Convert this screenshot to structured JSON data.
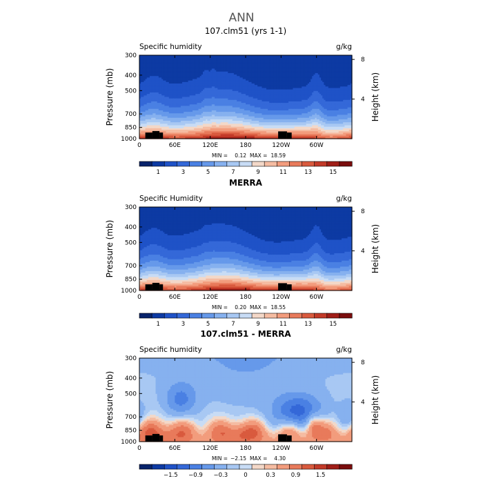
{
  "figure_title": "ANN",
  "chart_data": [
    {
      "type": "heatmap",
      "title": "107.clm51 (yrs 1-1)",
      "variable_label": "Specific humidity",
      "units": "g/kg",
      "ylabel": "Pressure (mb)",
      "ylabel_right": "Height (km)",
      "x_ticks": [
        "0",
        "60E",
        "120E",
        "180",
        "120W",
        "60W"
      ],
      "x_tick_values": [
        0,
        60,
        120,
        180,
        240,
        300
      ],
      "xlim": [
        0,
        360
      ],
      "y_ticks": [
        "300",
        "400",
        "500",
        "700",
        "850",
        "1000"
      ],
      "y_tick_values": [
        300,
        400,
        500,
        700,
        850,
        1000
      ],
      "ylim": [
        1000,
        300
      ],
      "y_scale": "log-pressure",
      "right_ticks": [
        "8",
        "4"
      ],
      "right_tick_values": [
        8,
        4
      ],
      "stats": {
        "min_label": "MIN =",
        "min": "0.12",
        "max_label": "MAX =",
        "max": "18.59"
      },
      "colorbar": {
        "levels": [
          0,
          1,
          2,
          3,
          4,
          5,
          6,
          7,
          8,
          9,
          10,
          11,
          12,
          13,
          14,
          15,
          16
        ],
        "labels": [
          "1",
          "3",
          "5",
          "7",
          "9",
          "11",
          "13",
          "15"
        ],
        "label_values": [
          1,
          3,
          5,
          7,
          9,
          11,
          13,
          15
        ],
        "colors": [
          "#08236b",
          "#0d3aa3",
          "#1f52c7",
          "#3468d8",
          "#4a80e3",
          "#6699ea",
          "#86b1ef",
          "#a8c8f3",
          "#c8dcf5",
          "#f3d8c8",
          "#f5bca2",
          "#f29c7d",
          "#e87a5b",
          "#d95a3e",
          "#c23a28",
          "#a01e18",
          "#7a0d0d"
        ]
      },
      "field": "model"
    },
    {
      "type": "heatmap",
      "title": "MERRA",
      "variable_label": "Specific Humidity",
      "units": "g/kg",
      "ylabel": "Pressure (mb)",
      "ylabel_right": "Height (km)",
      "x_ticks": [
        "0",
        "60E",
        "120E",
        "180",
        "120W",
        "60W"
      ],
      "x_tick_values": [
        0,
        60,
        120,
        180,
        240,
        300
      ],
      "xlim": [
        0,
        360
      ],
      "y_ticks": [
        "300",
        "400",
        "500",
        "700",
        "850",
        "1000"
      ],
      "y_tick_values": [
        300,
        400,
        500,
        700,
        850,
        1000
      ],
      "ylim": [
        1000,
        300
      ],
      "y_scale": "log-pressure",
      "right_ticks": [
        "8",
        "4"
      ],
      "right_tick_values": [
        8,
        4
      ],
      "stats": {
        "min_label": "MIN =",
        "min": "0.20",
        "max_label": "MAX =",
        "max": "18.55"
      },
      "colorbar": {
        "levels": [
          0,
          1,
          2,
          3,
          4,
          5,
          6,
          7,
          8,
          9,
          10,
          11,
          12,
          13,
          14,
          15,
          16
        ],
        "labels": [
          "1",
          "3",
          "5",
          "7",
          "9",
          "11",
          "13",
          "15"
        ],
        "label_values": [
          1,
          3,
          5,
          7,
          9,
          11,
          13,
          15
        ],
        "colors": [
          "#08236b",
          "#0d3aa3",
          "#1f52c7",
          "#3468d8",
          "#4a80e3",
          "#6699ea",
          "#86b1ef",
          "#a8c8f3",
          "#c8dcf5",
          "#f3d8c8",
          "#f5bca2",
          "#f29c7d",
          "#e87a5b",
          "#d95a3e",
          "#c23a28",
          "#a01e18",
          "#7a0d0d"
        ]
      },
      "field": "obs"
    },
    {
      "type": "heatmap",
      "title": "107.clm51 - MERRA",
      "variable_label": "Specific humidity",
      "units": "g/kg",
      "ylabel": "Pressure (mb)",
      "ylabel_right": "Height (km)",
      "x_ticks": [
        "0",
        "60E",
        "120E",
        "180",
        "120W",
        "60W"
      ],
      "x_tick_values": [
        0,
        60,
        120,
        180,
        240,
        300
      ],
      "xlim": [
        0,
        360
      ],
      "y_ticks": [
        "300",
        "400",
        "500",
        "700",
        "850",
        "1000"
      ],
      "y_tick_values": [
        300,
        400,
        500,
        700,
        850,
        1000
      ],
      "ylim": [
        1000,
        300
      ],
      "y_scale": "log-pressure",
      "right_ticks": [
        "8",
        "4"
      ],
      "right_tick_values": [
        8,
        4
      ],
      "stats": {
        "min_label": "MIN =",
        "min": "−2.15",
        "max_label": "MAX =",
        "max": "4.30"
      },
      "colorbar": {
        "levels": [
          -2.1,
          -1.8,
          -1.5,
          -1.2,
          -0.9,
          -0.6,
          -0.3,
          -0.15,
          0,
          0.15,
          0.3,
          0.6,
          0.9,
          1.2,
          1.5,
          1.8,
          2.1
        ],
        "labels": [
          "−1.5",
          "−0.9",
          "−0.3",
          "0",
          "0.3",
          "0.9",
          "1.5"
        ],
        "label_values": [
          -1.5,
          -0.9,
          -0.3,
          0,
          0.3,
          0.9,
          1.5
        ],
        "colors": [
          "#08236b",
          "#0d3aa3",
          "#1f52c7",
          "#3468d8",
          "#4a80e3",
          "#6699ea",
          "#86b1ef",
          "#a8c8f3",
          "#c8dcf5",
          "#f3d8c8",
          "#f5bca2",
          "#f29c7d",
          "#e87a5b",
          "#d95a3e",
          "#c23a28",
          "#a01e18",
          "#7a0d0d"
        ]
      },
      "field": "diff"
    }
  ],
  "topography_color": "#000000"
}
